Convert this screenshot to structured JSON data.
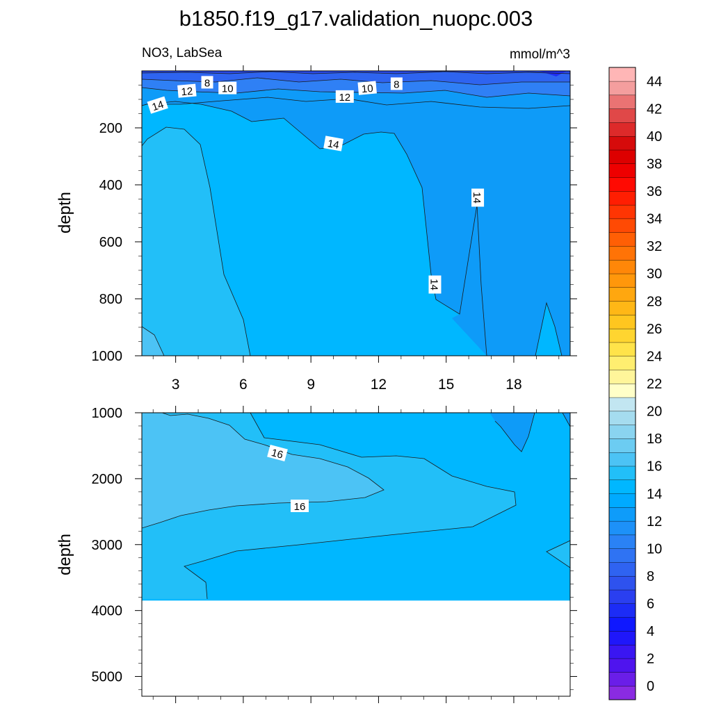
{
  "title": "b1850.f19_g17.validation_nuopc.003",
  "subtitle_left": "NO3, LabSea",
  "subtitle_right": "mmol/m^3",
  "chart_data": [
    {
      "type": "contour",
      "panel": "upper",
      "ylabel": "depth",
      "ylim": [
        1000,
        0
      ],
      "xlim": [
        1.5,
        20.5
      ],
      "y_reversed": true,
      "x_ticks": [
        3,
        6,
        9,
        12,
        15,
        18
      ],
      "y_ticks": [
        200,
        400,
        600,
        800,
        1000
      ],
      "regions": [
        {
          "value_range": [
            6,
            8
          ],
          "color": "#2a4ae8",
          "region": "surface layer, depth 0-25"
        },
        {
          "value_range": [
            8,
            10
          ],
          "color": "#2e64f0",
          "region": "depth 25-60"
        },
        {
          "value_range": [
            10,
            12
          ],
          "color": "#2f80f5",
          "region": "depth 60-100"
        },
        {
          "value_range": [
            12,
            14
          ],
          "color": "#0e9bf8",
          "region": "depth ~100-200 and east of x~15 to 1000"
        },
        {
          "value_range": [
            14,
            16
          ],
          "color": "#00b7ff",
          "region": "main body, x~3.5-14.5, depth 200-1000"
        },
        {
          "value_range": [
            16,
            18
          ],
          "color": "#22bff8",
          "region": "west edge, x<3.5, depth 200-1000"
        }
      ],
      "contour_labels": [
        {
          "text": "8",
          "x": 4.4,
          "depth": 40
        },
        {
          "text": "10",
          "x": 5.3,
          "depth": 60
        },
        {
          "text": "12",
          "x": 3.5,
          "depth": 70
        },
        {
          "text": "14",
          "x": 2.2,
          "depth": 120
        },
        {
          "text": "10",
          "x": 11.5,
          "depth": 60
        },
        {
          "text": "8",
          "x": 12.8,
          "depth": 45
        },
        {
          "text": "12",
          "x": 10.5,
          "depth": 90
        },
        {
          "text": "14",
          "x": 10.0,
          "depth": 255
        },
        {
          "text": "14",
          "x": 16.4,
          "depth": 445
        },
        {
          "text": "14",
          "x": 14.5,
          "depth": 750
        }
      ]
    },
    {
      "type": "contour",
      "panel": "lower",
      "ylabel": "depth",
      "ylim": [
        5300,
        1000
      ],
      "xlim": [
        1.5,
        20.5
      ],
      "y_reversed": true,
      "y_ticks": [
        1000,
        2000,
        3000,
        4000,
        5000
      ],
      "bottom_depth": 3850,
      "regions": [
        {
          "value_range": [
            12,
            14
          ],
          "color": "#0e9bf8",
          "region": "east edge near depth 1000-1500"
        },
        {
          "value_range": [
            14,
            16
          ],
          "color": "#00b7ff",
          "region": "upper right and lower layer 2800-3850"
        },
        {
          "value_range": [
            16,
            18
          ],
          "color": "#22bff8",
          "region": "middle band 1500-3200"
        },
        {
          "value_range": [
            18,
            20
          ],
          "color": "#4cc3f5",
          "region": "upper left wedge 1000-2800"
        }
      ],
      "contour_labels": [
        {
          "text": "16",
          "x": 12.2,
          "depth": 1600
        },
        {
          "text": "16",
          "x": 11.0,
          "depth": 2500
        }
      ]
    }
  ],
  "colorbar": {
    "labels": [
      "0",
      "2",
      "4",
      "6",
      "8",
      "10",
      "12",
      "14",
      "16",
      "18",
      "20",
      "22",
      "24",
      "26",
      "28",
      "30",
      "32",
      "34",
      "36",
      "38",
      "40",
      "42",
      "44"
    ],
    "colors_bottom_to_top": [
      "#8a2be2",
      "#6a1ee8",
      "#4f14ee",
      "#3a16f2",
      "#1f17fa",
      "#0f18ff",
      "#1c2cf6",
      "#2a3ff0",
      "#2e52ee",
      "#2f63f1",
      "#2f73f3",
      "#2a82f5",
      "#1d91f8",
      "#0e9cfa",
      "#00aaff",
      "#00b7ff",
      "#22bff8",
      "#4cc3f5",
      "#6cccf2",
      "#8ad4f0",
      "#a5dcef",
      "#c2e6f1",
      "#ffffc8",
      "#fff59a",
      "#ffee70",
      "#ffe34a",
      "#ffd530",
      "#ffc61f",
      "#ffb716",
      "#ffa70f",
      "#ff970b",
      "#ff8708",
      "#ff7306",
      "#ff5f05",
      "#ff4a04",
      "#ff3503",
      "#ff1e02",
      "#ff0a02",
      "#ee0000",
      "#dd0000",
      "#d60b0b",
      "#dd2a2a",
      "#e04848",
      "#ea7373",
      "#f49e9e",
      "#ffb6b6"
    ]
  }
}
